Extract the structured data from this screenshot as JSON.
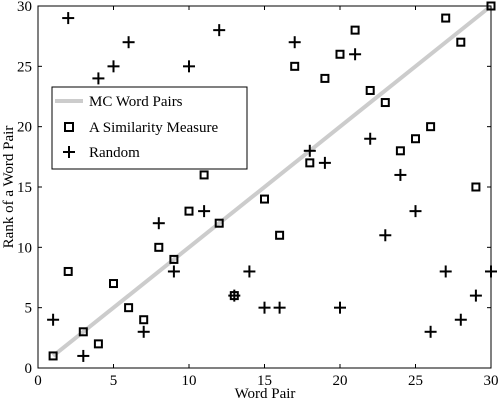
{
  "chart_data": {
    "type": "scatter",
    "title": "",
    "xlabel": "Word Pair",
    "ylabel": "Rank of a Word Pair",
    "xlim": [
      0,
      30
    ],
    "ylim": [
      0,
      30
    ],
    "xticks": [
      0,
      5,
      10,
      15,
      20,
      25,
      30
    ],
    "yticks": [
      0,
      5,
      10,
      15,
      20,
      25,
      30
    ],
    "grid": false,
    "legend_position": "upper-left",
    "series": [
      {
        "name": "MC Word Pairs",
        "kind": "line",
        "color": "#cccccc",
        "points": [
          [
            1,
            1
          ],
          [
            30,
            30
          ]
        ]
      },
      {
        "name": "A Similarity Measure",
        "kind": "square",
        "color": "#000000",
        "points": [
          [
            1,
            1
          ],
          [
            2,
            8
          ],
          [
            3,
            3
          ],
          [
            4,
            2
          ],
          [
            5,
            7
          ],
          [
            6,
            5
          ],
          [
            7,
            4
          ],
          [
            8,
            10
          ],
          [
            9,
            9
          ],
          [
            10,
            13
          ],
          [
            11,
            16
          ],
          [
            12,
            12
          ],
          [
            13,
            6
          ],
          [
            15,
            14
          ],
          [
            16,
            11
          ],
          [
            17,
            25
          ],
          [
            18,
            17
          ],
          [
            19,
            24
          ],
          [
            20,
            26
          ],
          [
            21,
            28
          ],
          [
            22,
            23
          ],
          [
            23,
            22
          ],
          [
            24,
            18
          ],
          [
            25,
            19
          ],
          [
            26,
            20
          ],
          [
            27,
            29
          ],
          [
            28,
            27
          ],
          [
            29,
            15
          ],
          [
            30,
            30
          ]
        ]
      },
      {
        "name": "Random",
        "kind": "plus",
        "color": "#000000",
        "points": [
          [
            1,
            4
          ],
          [
            2,
            29
          ],
          [
            3,
            1
          ],
          [
            4,
            24
          ],
          [
            5,
            25
          ],
          [
            6,
            27
          ],
          [
            7,
            3
          ],
          [
            8,
            12
          ],
          [
            9,
            8
          ],
          [
            10,
            25
          ],
          [
            11,
            13
          ],
          [
            12,
            28
          ],
          [
            13,
            6
          ],
          [
            14,
            8
          ],
          [
            15,
            5
          ],
          [
            16,
            5
          ],
          [
            17,
            27
          ],
          [
            18,
            18
          ],
          [
            19,
            17
          ],
          [
            20,
            5
          ],
          [
            21,
            26
          ],
          [
            22,
            19
          ],
          [
            23,
            11
          ],
          [
            24,
            16
          ],
          [
            25,
            13
          ],
          [
            26,
            3
          ],
          [
            27,
            8
          ],
          [
            28,
            4
          ],
          [
            29,
            6
          ],
          [
            30,
            8
          ]
        ]
      }
    ]
  }
}
